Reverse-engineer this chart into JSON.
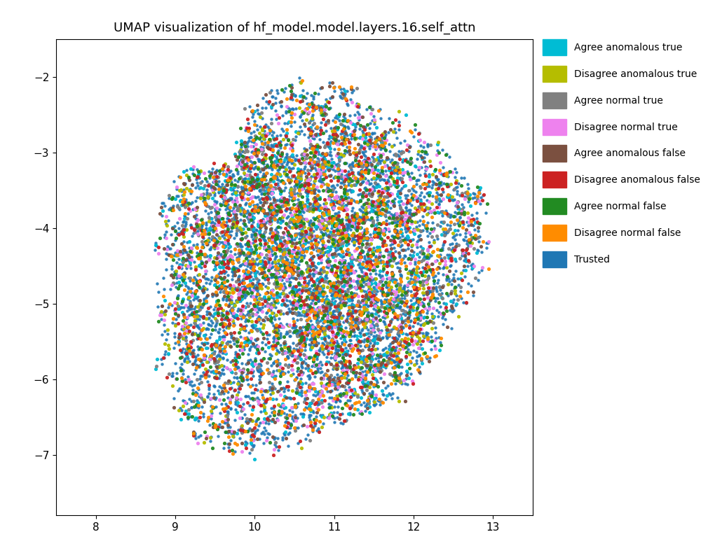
{
  "title": "UMAP visualization of hf_model.model.layers.16.self_attn",
  "xlim": [
    7.5,
    13.5
  ],
  "ylim": [
    -7.8,
    -1.5
  ],
  "xticks": [
    8,
    9,
    10,
    11,
    12,
    13
  ],
  "yticks": [
    -7,
    -6,
    -5,
    -4,
    -3,
    -2
  ],
  "categories": [
    "Agree anomalous true",
    "Disagree anomalous true",
    "Agree normal true",
    "Disagree normal true",
    "Agree anomalous false",
    "Disagree anomalous false",
    "Agree normal false",
    "Disagree normal false",
    "Trusted"
  ],
  "colors": [
    "#00bcd4",
    "#b5bd00",
    "#808080",
    "#ee82ee",
    "#7b5040",
    "#cc2222",
    "#228b22",
    "#ff8c00",
    "#1f77b4"
  ],
  "n_trusted": 5000,
  "n_minority": 600,
  "background_color": "#ffffff",
  "title_fontsize": 13,
  "tick_fontsize": 11,
  "legend_fontsize": 10,
  "marker_size": 10,
  "alpha": 0.9,
  "seed": 42
}
